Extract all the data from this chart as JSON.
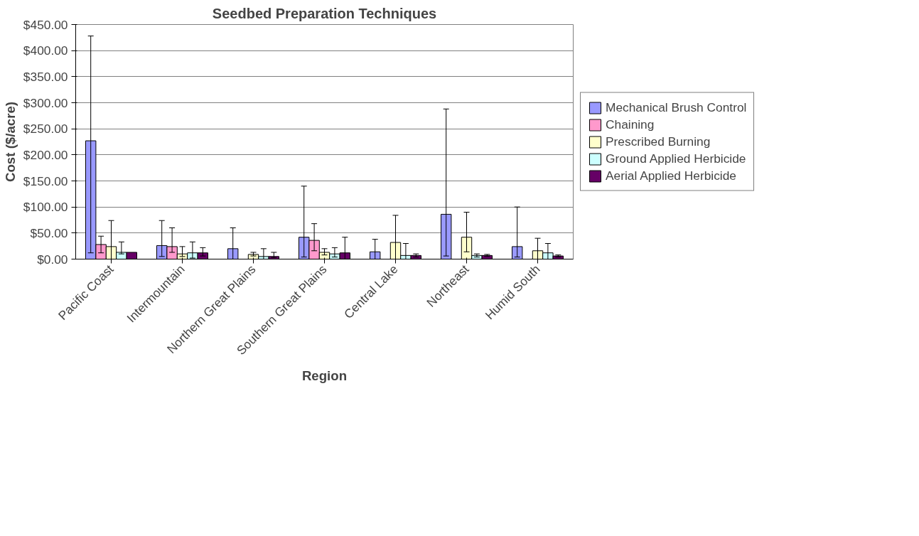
{
  "chart_data": {
    "type": "bar",
    "title": "Seedbed Preparation Techniques",
    "xlabel": "Region",
    "ylabel": "Cost ($/acre)",
    "categories": [
      "Pacific Coast",
      "Intermountain",
      "Northern Great Plains",
      "Southern Great Plains",
      "Central Lake",
      "Northeast",
      "Humid South"
    ],
    "ylim": [
      0,
      450
    ],
    "yticks": [
      {
        "value": 0,
        "label": "$0.00"
      },
      {
        "value": 50,
        "label": "$50.00"
      },
      {
        "value": 100,
        "label": "$100.00"
      },
      {
        "value": 150,
        "label": "$150.00"
      },
      {
        "value": 200,
        "label": "$200.00"
      },
      {
        "value": 250,
        "label": "$250.00"
      },
      {
        "value": 300,
        "label": "$300.00"
      },
      {
        "value": 350,
        "label": "$350.00"
      },
      {
        "value": 400,
        "label": "$400.00"
      },
      {
        "value": 450,
        "label": "$450.00"
      }
    ],
    "grid": "y",
    "legend": "right",
    "series": [
      {
        "name": "Mechanical Brush Control",
        "color": "#9999ff",
        "values": [
          227,
          26,
          20,
          42,
          14,
          86,
          24
        ],
        "errors": [
          [
            12,
            428
          ],
          [
            5,
            74
          ],
          [
            0,
            60
          ],
          [
            4,
            140
          ],
          [
            0,
            38
          ],
          [
            6,
            288
          ],
          [
            4,
            100
          ]
        ]
      },
      {
        "name": "Chaining",
        "color": "#ff99cc",
        "values": [
          28,
          24,
          null,
          36,
          null,
          null,
          null
        ],
        "errors": [
          [
            12,
            44
          ],
          [
            13,
            60
          ],
          null,
          [
            16,
            68
          ],
          null,
          null,
          null
        ]
      },
      {
        "name": "Prescribed Burning",
        "color": "#ffffcc",
        "values": [
          24,
          10,
          9,
          13,
          32,
          42,
          16
        ],
        "errors": [
          [
            0,
            74
          ],
          [
            5,
            24
          ],
          [
            6,
            13
          ],
          [
            8,
            20
          ],
          [
            0,
            84
          ],
          [
            14,
            90
          ],
          [
            0,
            40
          ]
        ]
      },
      {
        "name": "Ground Applied Herbicide",
        "color": "#ccffff",
        "values": [
          13,
          12,
          5,
          10,
          7,
          7,
          12
        ],
        "errors": [
          [
            10,
            33
          ],
          [
            2,
            33
          ],
          [
            0,
            20
          ],
          [
            4,
            22
          ],
          [
            0,
            30
          ],
          [
            4,
            10
          ],
          [
            0,
            30
          ]
        ]
      },
      {
        "name": "Aerial Applied Herbicide",
        "color": "#660066",
        "values": [
          13,
          12,
          5,
          12,
          7,
          7,
          6
        ],
        "errors": [
          null,
          [
            6,
            22
          ],
          [
            3,
            13
          ],
          [
            0,
            42
          ],
          [
            4,
            10
          ],
          [
            5,
            9
          ],
          [
            4,
            8
          ]
        ]
      }
    ]
  }
}
